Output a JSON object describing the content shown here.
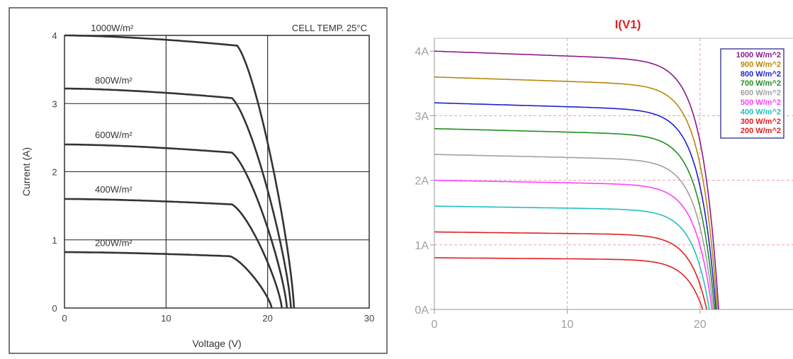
{
  "chart_data": [
    {
      "type": "line",
      "title": "",
      "annotation": "CELL TEMP. 25°C",
      "xlabel": "Voltage (V)",
      "ylabel": "Current (A)",
      "xlim": [
        0,
        30
      ],
      "ylim": [
        0,
        4
      ],
      "x_ticks": [
        "0",
        "10",
        "20",
        "30"
      ],
      "y_ticks": [
        "0",
        "1",
        "2",
        "3",
        "4"
      ],
      "grid": true,
      "colors": {
        "curve": "#333333",
        "frame": "#222222",
        "background": "#ffffff"
      },
      "series": [
        {
          "name": "1000W/m²",
          "isc": 4.0,
          "i_knee": 3.85,
          "v_knee": 17.0,
          "voc": 22.6,
          "label_at": [
            2.6,
            4.02
          ]
        },
        {
          "name": "800W/m²",
          "isc": 3.22,
          "i_knee": 3.08,
          "v_knee": 16.5,
          "voc": 22.3,
          "label_at": [
            3.0,
            3.25
          ]
        },
        {
          "name": "600W/m²",
          "isc": 2.4,
          "i_knee": 2.28,
          "v_knee": 16.5,
          "voc": 21.9,
          "label_at": [
            3.0,
            2.45
          ]
        },
        {
          "name": "400W/m²",
          "isc": 1.6,
          "i_knee": 1.52,
          "v_knee": 16.5,
          "voc": 21.4,
          "label_at": [
            3.0,
            1.65
          ]
        },
        {
          "name": "200W/m²",
          "isc": 0.82,
          "i_knee": 0.76,
          "v_knee": 16.3,
          "voc": 20.4,
          "label_at": [
            3.0,
            0.87
          ]
        }
      ]
    },
    {
      "type": "line",
      "title": "I(V1)",
      "xlabel": "",
      "ylabel": "",
      "xlim": [
        0,
        27
      ],
      "ylim": [
        0,
        4.2
      ],
      "x_ticks": [
        "0",
        "10",
        "20"
      ],
      "y_ticks": [
        "0A",
        "1A",
        "2A",
        "3A",
        "4A"
      ],
      "grid": true,
      "legend_position": "top-right",
      "colors": {
        "title": "#e02020",
        "grid": "#e8a0b4",
        "tick_text": "#a0a0a0"
      },
      "series": [
        {
          "name": "1000 W/m^2",
          "color": "#8b1a8b",
          "isc": 4.0,
          "voc": 21.4
        },
        {
          "name": "900 W/m^2",
          "color": "#b8860b",
          "isc": 3.6,
          "voc": 21.3
        },
        {
          "name": "800 W/m^2",
          "color": "#1f1fd0",
          "isc": 3.2,
          "voc": 21.2
        },
        {
          "name": "700 W/m^2",
          "color": "#1f8f1f",
          "isc": 2.8,
          "voc": 21.1
        },
        {
          "name": "600 W/m^2",
          "color": "#a0a0a0",
          "isc": 2.4,
          "voc": 21.0
        },
        {
          "name": "500 W/m^2",
          "color": "#ff40ff",
          "isc": 2.0,
          "voc": 20.9
        },
        {
          "name": "400 W/m^2",
          "color": "#20c0c0",
          "isc": 1.6,
          "voc": 20.7
        },
        {
          "name": "300 W/m^2",
          "color": "#e02020",
          "isc": 1.2,
          "voc": 20.5
        },
        {
          "name": "200 W/m^2",
          "color": "#e02020",
          "isc": 0.8,
          "voc": 20.2
        }
      ]
    }
  ]
}
